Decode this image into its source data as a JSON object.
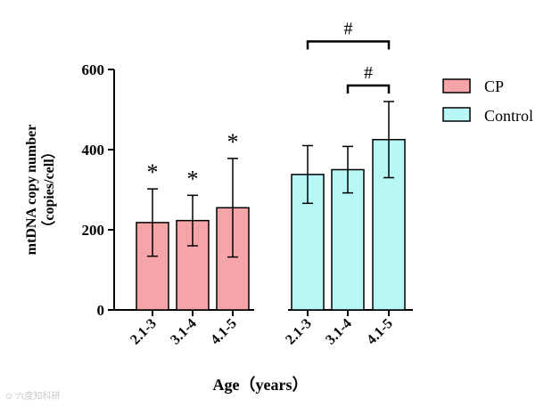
{
  "chart_data": {
    "type": "bar",
    "xlabel": "Age（years）",
    "ylabel_line1": "mtDNA copy number",
    "ylabel_line2": "（copies/cell）",
    "ylim": [
      0,
      600
    ],
    "yticks": [
      "0",
      "200",
      "400",
      "600"
    ],
    "categories": [
      "2.1-3",
      "3.1-4",
      "4.1-5"
    ],
    "series": [
      {
        "name": "CP",
        "color": "#f5a5a8",
        "values": [
          218,
          223,
          255
        ],
        "errors": [
          84,
          63,
          123
        ],
        "annotations": [
          "*",
          "*",
          "*"
        ]
      },
      {
        "name": "Control",
        "color": "#b7f7f6",
        "values": [
          338,
          350,
          425
        ],
        "errors": [
          72,
          58,
          95
        ],
        "annotations": [
          "",
          "",
          ""
        ]
      }
    ],
    "brackets": [
      {
        "label": "#",
        "series": 1,
        "from": 0,
        "to": 2,
        "y": 670
      },
      {
        "label": "#",
        "series": 1,
        "from": 1,
        "to": 2,
        "y": 560
      }
    ],
    "legend": {
      "position": "right",
      "entries": [
        "CP",
        "Control"
      ]
    }
  },
  "watermark": "⊙ 六度知科研"
}
